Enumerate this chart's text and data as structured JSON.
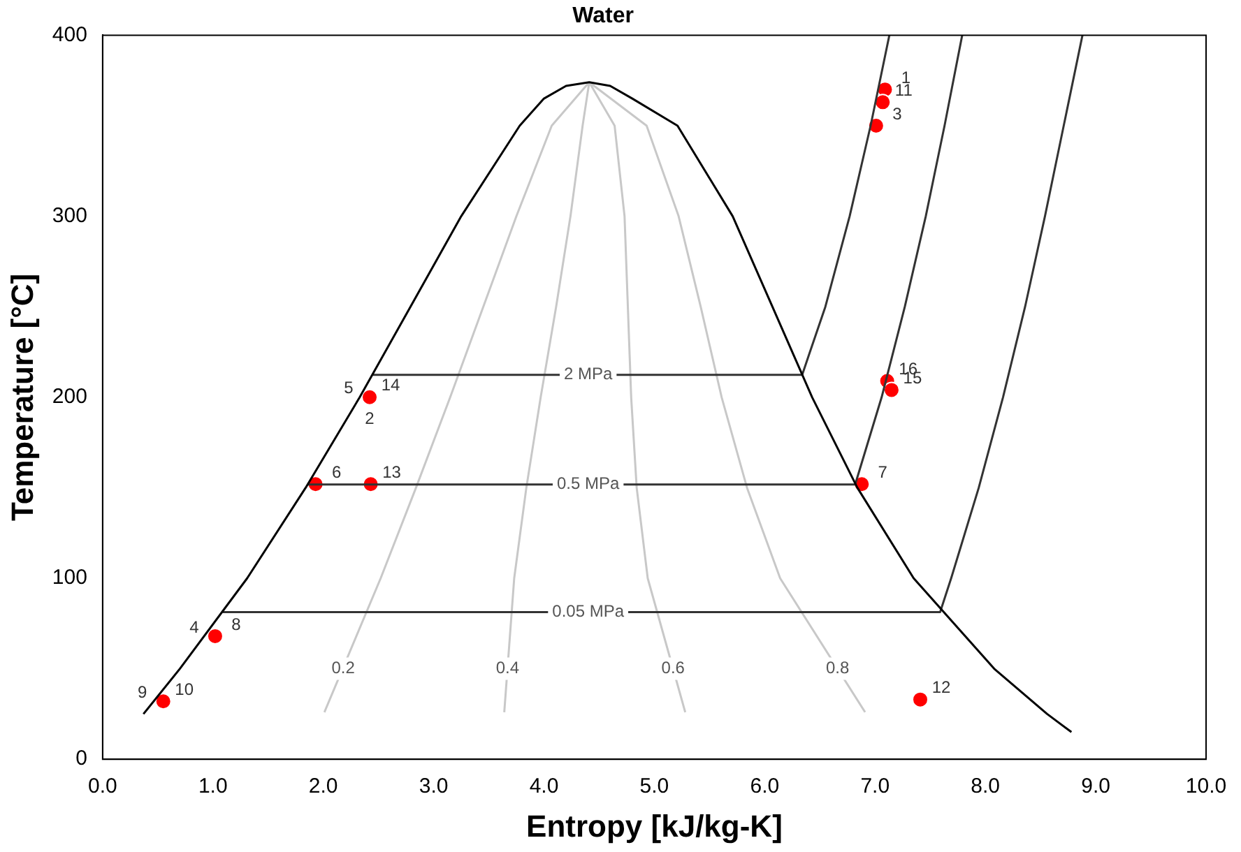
{
  "chart_data": {
    "type": "line",
    "title": "Water",
    "xlabel": "Entropy [kJ/kg-K]",
    "ylabel": "Temperature [°C]",
    "xlim": [
      0,
      10
    ],
    "ylim": [
      0,
      400
    ],
    "xticks": [
      {
        "value": 0,
        "label": "0.0"
      },
      {
        "value": 1,
        "label": "1.0"
      },
      {
        "value": 2,
        "label": "2.0"
      },
      {
        "value": 3,
        "label": "3.0"
      },
      {
        "value": 4,
        "label": "4.0"
      },
      {
        "value": 5,
        "label": "5.0"
      },
      {
        "value": 6,
        "label": "6.0"
      },
      {
        "value": 7,
        "label": "7.0"
      },
      {
        "value": 8,
        "label": "8.0"
      },
      {
        "value": 9,
        "label": "9.0"
      },
      {
        "value": 10,
        "label": "10.0"
      }
    ],
    "yticks": [
      0,
      100,
      200,
      300,
      400
    ],
    "grid": false,
    "legend": false,
    "series": [
      {
        "type": "line",
        "color": "#000000",
        "x": [
          0.37,
          0.7,
          1.31,
          1.84,
          2.33,
          2.79,
          3.25,
          3.78,
          4.0,
          4.2,
          4.41,
          4.6,
          4.8,
          5.21,
          5.71,
          6.07,
          6.43,
          6.84,
          7.35,
          8.08,
          8.56,
          8.78
        ],
        "values": [
          25,
          50,
          100,
          150,
          200,
          250,
          300,
          350,
          365,
          372,
          374,
          372,
          365,
          350,
          300,
          250,
          200,
          150,
          100,
          50,
          25,
          15
        ]
      },
      {
        "type": "line",
        "color": "#333333",
        "x": [
          2.45,
          6.34,
          6.41,
          6.55,
          6.77,
          6.96,
          7.13
        ],
        "values": [
          212.4,
          212.4,
          225,
          250,
          300,
          350,
          400
        ]
      },
      {
        "type": "line",
        "color": "#333333",
        "x": [
          1.86,
          6.82,
          7.06,
          7.27,
          7.46,
          7.63,
          7.79
        ],
        "values": [
          151.8,
          151.8,
          200,
          250,
          300,
          350,
          400
        ]
      },
      {
        "type": "line",
        "color": "#333333",
        "x": [
          1.09,
          7.59,
          7.69,
          7.94,
          8.16,
          8.36,
          8.54,
          8.71,
          8.88
        ],
        "values": [
          81.3,
          81.3,
          100,
          150,
          200,
          250,
          300,
          350,
          400
        ]
      },
      {
        "type": "line",
        "color": "#c8c8c8",
        "x": [
          2.01,
          2.52,
          2.84,
          3.15,
          3.45,
          3.75,
          4.07,
          4.41
        ],
        "values": [
          26,
          100,
          150,
          200,
          250,
          300,
          350,
          374
        ]
      },
      {
        "type": "line",
        "color": "#c8c8c8",
        "x": [
          3.64,
          3.73,
          3.84,
          3.97,
          4.11,
          4.24,
          4.35,
          4.41
        ],
        "values": [
          26,
          100,
          150,
          200,
          250,
          300,
          350,
          374
        ]
      },
      {
        "type": "line",
        "color": "#c8c8c8",
        "x": [
          5.28,
          4.94,
          4.84,
          4.79,
          4.76,
          4.73,
          4.64,
          4.41
        ],
        "values": [
          26,
          100,
          150,
          200,
          250,
          300,
          350,
          374
        ]
      },
      {
        "type": "line",
        "color": "#c8c8c8",
        "x": [
          6.91,
          6.14,
          5.84,
          5.61,
          5.42,
          5.22,
          4.93,
          4.41
        ],
        "values": [
          26,
          100,
          150,
          200,
          250,
          300,
          350,
          374
        ]
      },
      {
        "type": "scatter",
        "marker": "circle",
        "color": "#ff0000",
        "x": [
          7.09,
          7.07,
          7.01,
          2.42,
          1.93,
          2.43,
          6.88,
          1.02,
          0.55,
          7.11,
          7.15,
          7.41
        ],
        "values": [
          370,
          363,
          350,
          200,
          152,
          152,
          152,
          68,
          32,
          209,
          204,
          33
        ]
      }
    ],
    "annotations": [
      {
        "text": "1",
        "x": 7.09,
        "y": 370
      },
      {
        "text": "11",
        "x": 7.07,
        "y": 363
      },
      {
        "text": "3",
        "x": 7.01,
        "y": 350
      },
      {
        "text": "14",
        "x": 2.42,
        "y": 200
      },
      {
        "text": "5",
        "x": 2.42,
        "y": 200
      },
      {
        "text": "2",
        "x": 2.42,
        "y": 200
      },
      {
        "text": "6",
        "x": 1.93,
        "y": 152
      },
      {
        "text": "13",
        "x": 2.43,
        "y": 152
      },
      {
        "text": "7",
        "x": 6.88,
        "y": 152
      },
      {
        "text": "8",
        "x": 1.02,
        "y": 68
      },
      {
        "text": "4",
        "x": 1.02,
        "y": 68
      },
      {
        "text": "10",
        "x": 0.55,
        "y": 32
      },
      {
        "text": "9",
        "x": 0.55,
        "y": 32
      },
      {
        "text": "15",
        "x": 7.15,
        "y": 204
      },
      {
        "text": "16",
        "x": 7.11,
        "y": 209
      },
      {
        "text": "12",
        "x": 7.41,
        "y": 33
      },
      {
        "text": "0.2",
        "x": 2.18,
        "y": 50
      },
      {
        "text": "0.4",
        "x": 3.67,
        "y": 50
      },
      {
        "text": "0.6",
        "x": 5.17,
        "y": 50
      },
      {
        "text": "0.8",
        "x": 6.66,
        "y": 50
      },
      {
        "text": "2 MPa",
        "x": 4.4,
        "y": 212.4
      },
      {
        "text": "0.5 MPa",
        "x": 4.4,
        "y": 151.8
      },
      {
        "text": "0.05 MPa",
        "x": 4.4,
        "y": 81.3
      }
    ]
  }
}
